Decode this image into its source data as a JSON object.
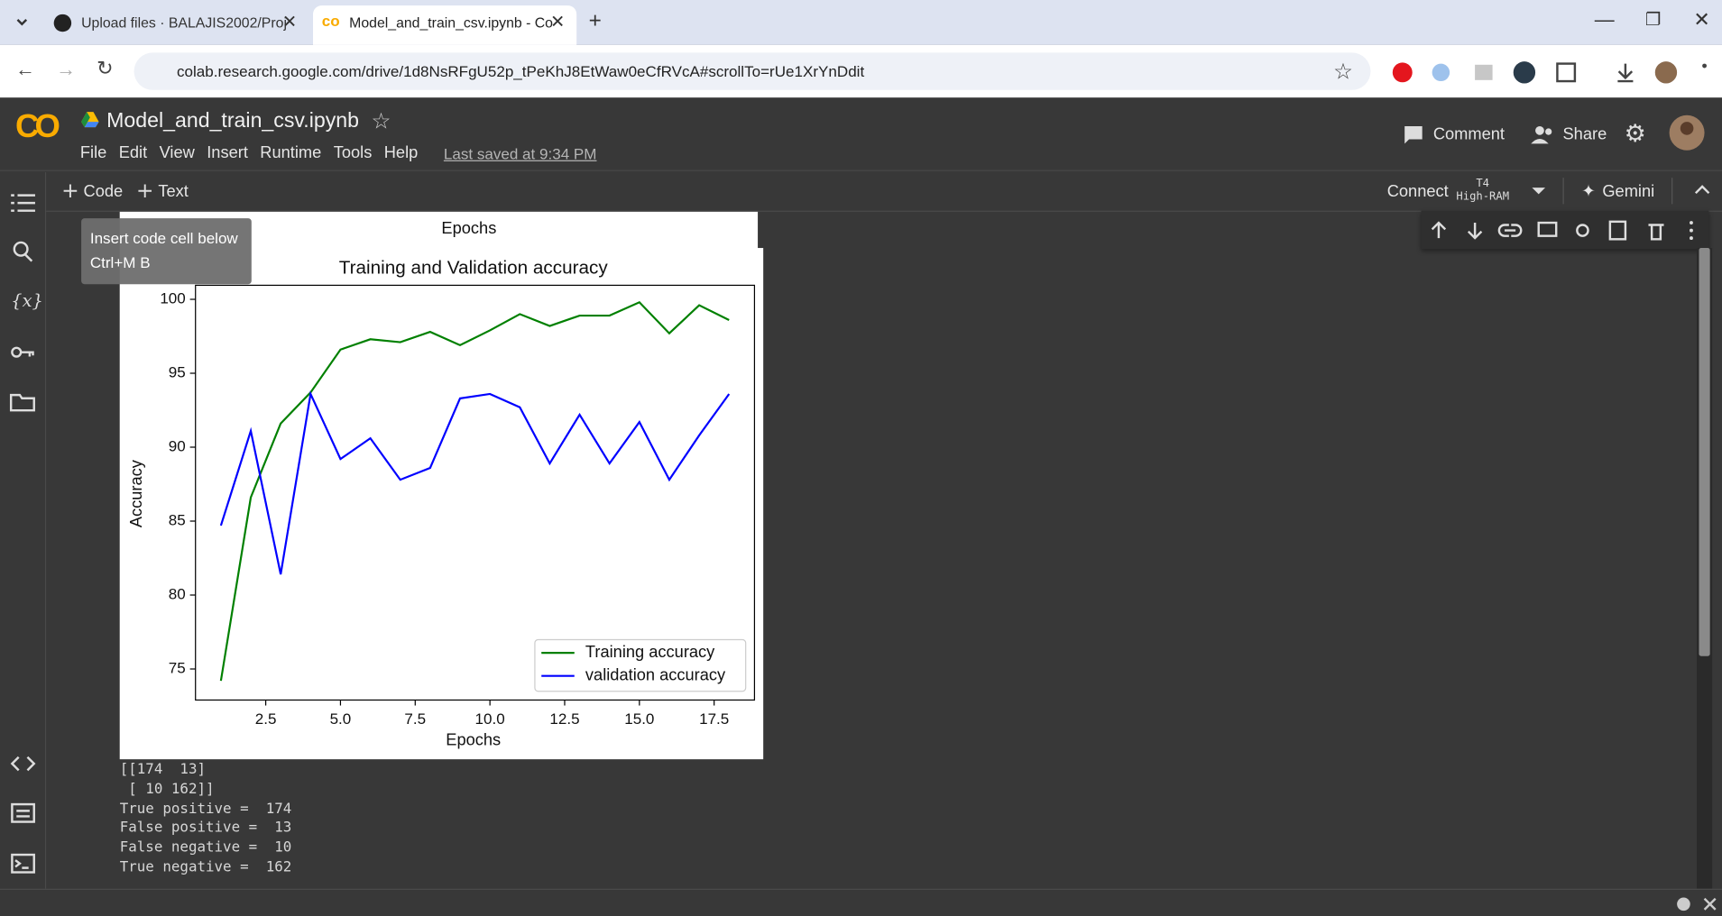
{
  "browser": {
    "tabs": [
      "Upload files · BALAJIS2002/Proj",
      "Model_and_train_csv.ipynb - Co"
    ],
    "url": "colab.research.google.com/drive/1d8NsRFgU52p_tPeKhJ8EtWaw0eCfRVcA#scrollTo=rUe1XrYnDdit"
  },
  "header": {
    "notebook_title": "Model_and_train_csv.ipynb",
    "menu": [
      "File",
      "Edit",
      "View",
      "Insert",
      "Runtime",
      "Tools",
      "Help"
    ],
    "last_saved": "Last saved at 9:34 PM",
    "actions": [
      "Comment",
      "Share"
    ]
  },
  "toolbar": {
    "add_buttons": [
      "Code",
      "Text"
    ],
    "connect": "Connect",
    "runtime_type": "T4",
    "runtime_ram": "High-RAM",
    "gemini": "Gemini"
  },
  "tooltip": {
    "text": "Insert code cell below",
    "shortcut": "Ctrl+M B"
  },
  "previous_output": {
    "xlabel": "Epochs"
  },
  "chart_data": {
    "type": "line",
    "title": "Training and Validation accuracy",
    "x_label": "Epochs",
    "y_label": "Accuracy",
    "x": [
      1,
      2,
      3,
      4,
      5,
      6,
      7,
      8,
      9,
      10,
      11,
      12,
      13,
      14,
      15,
      16,
      17,
      18
    ],
    "series": [
      {
        "name": "Training accuracy",
        "color": "#008000",
        "values": [
          74.2,
          86.6,
          91.6,
          93.7,
          96.6,
          97.3,
          97.1,
          97.8,
          96.9,
          97.9,
          99.0,
          98.2,
          98.9,
          98.9,
          99.8,
          97.7,
          99.6,
          98.6
        ]
      },
      {
        "name": "validation accuracy",
        "color": "#0000ff",
        "values": [
          84.7,
          91.1,
          81.4,
          93.6,
          89.2,
          90.6,
          87.8,
          88.6,
          93.3,
          93.6,
          92.7,
          88.9,
          92.2,
          88.9,
          91.7,
          87.8,
          90.8,
          93.6
        ]
      }
    ],
    "xlim": [
      0.15,
      18.85
    ],
    "ylim": [
      72.9,
      100.95
    ],
    "xticks": [
      2.5,
      {
        "value": 5,
        "label": "5.0"
      },
      7.5,
      {
        "value": 10,
        "label": "10.0"
      },
      12.5,
      {
        "value": 15,
        "label": "15.0"
      },
      17.5
    ],
    "yticks": [
      75,
      80,
      85,
      90,
      95,
      100
    ],
    "legend": "lower right",
    "grid": false
  },
  "output_lines": [
    "[[174  13]",
    " [ 10 162]]",
    "True positive =  174",
    "False positive =  13",
    "False negative =  10",
    "True negative =  162"
  ]
}
